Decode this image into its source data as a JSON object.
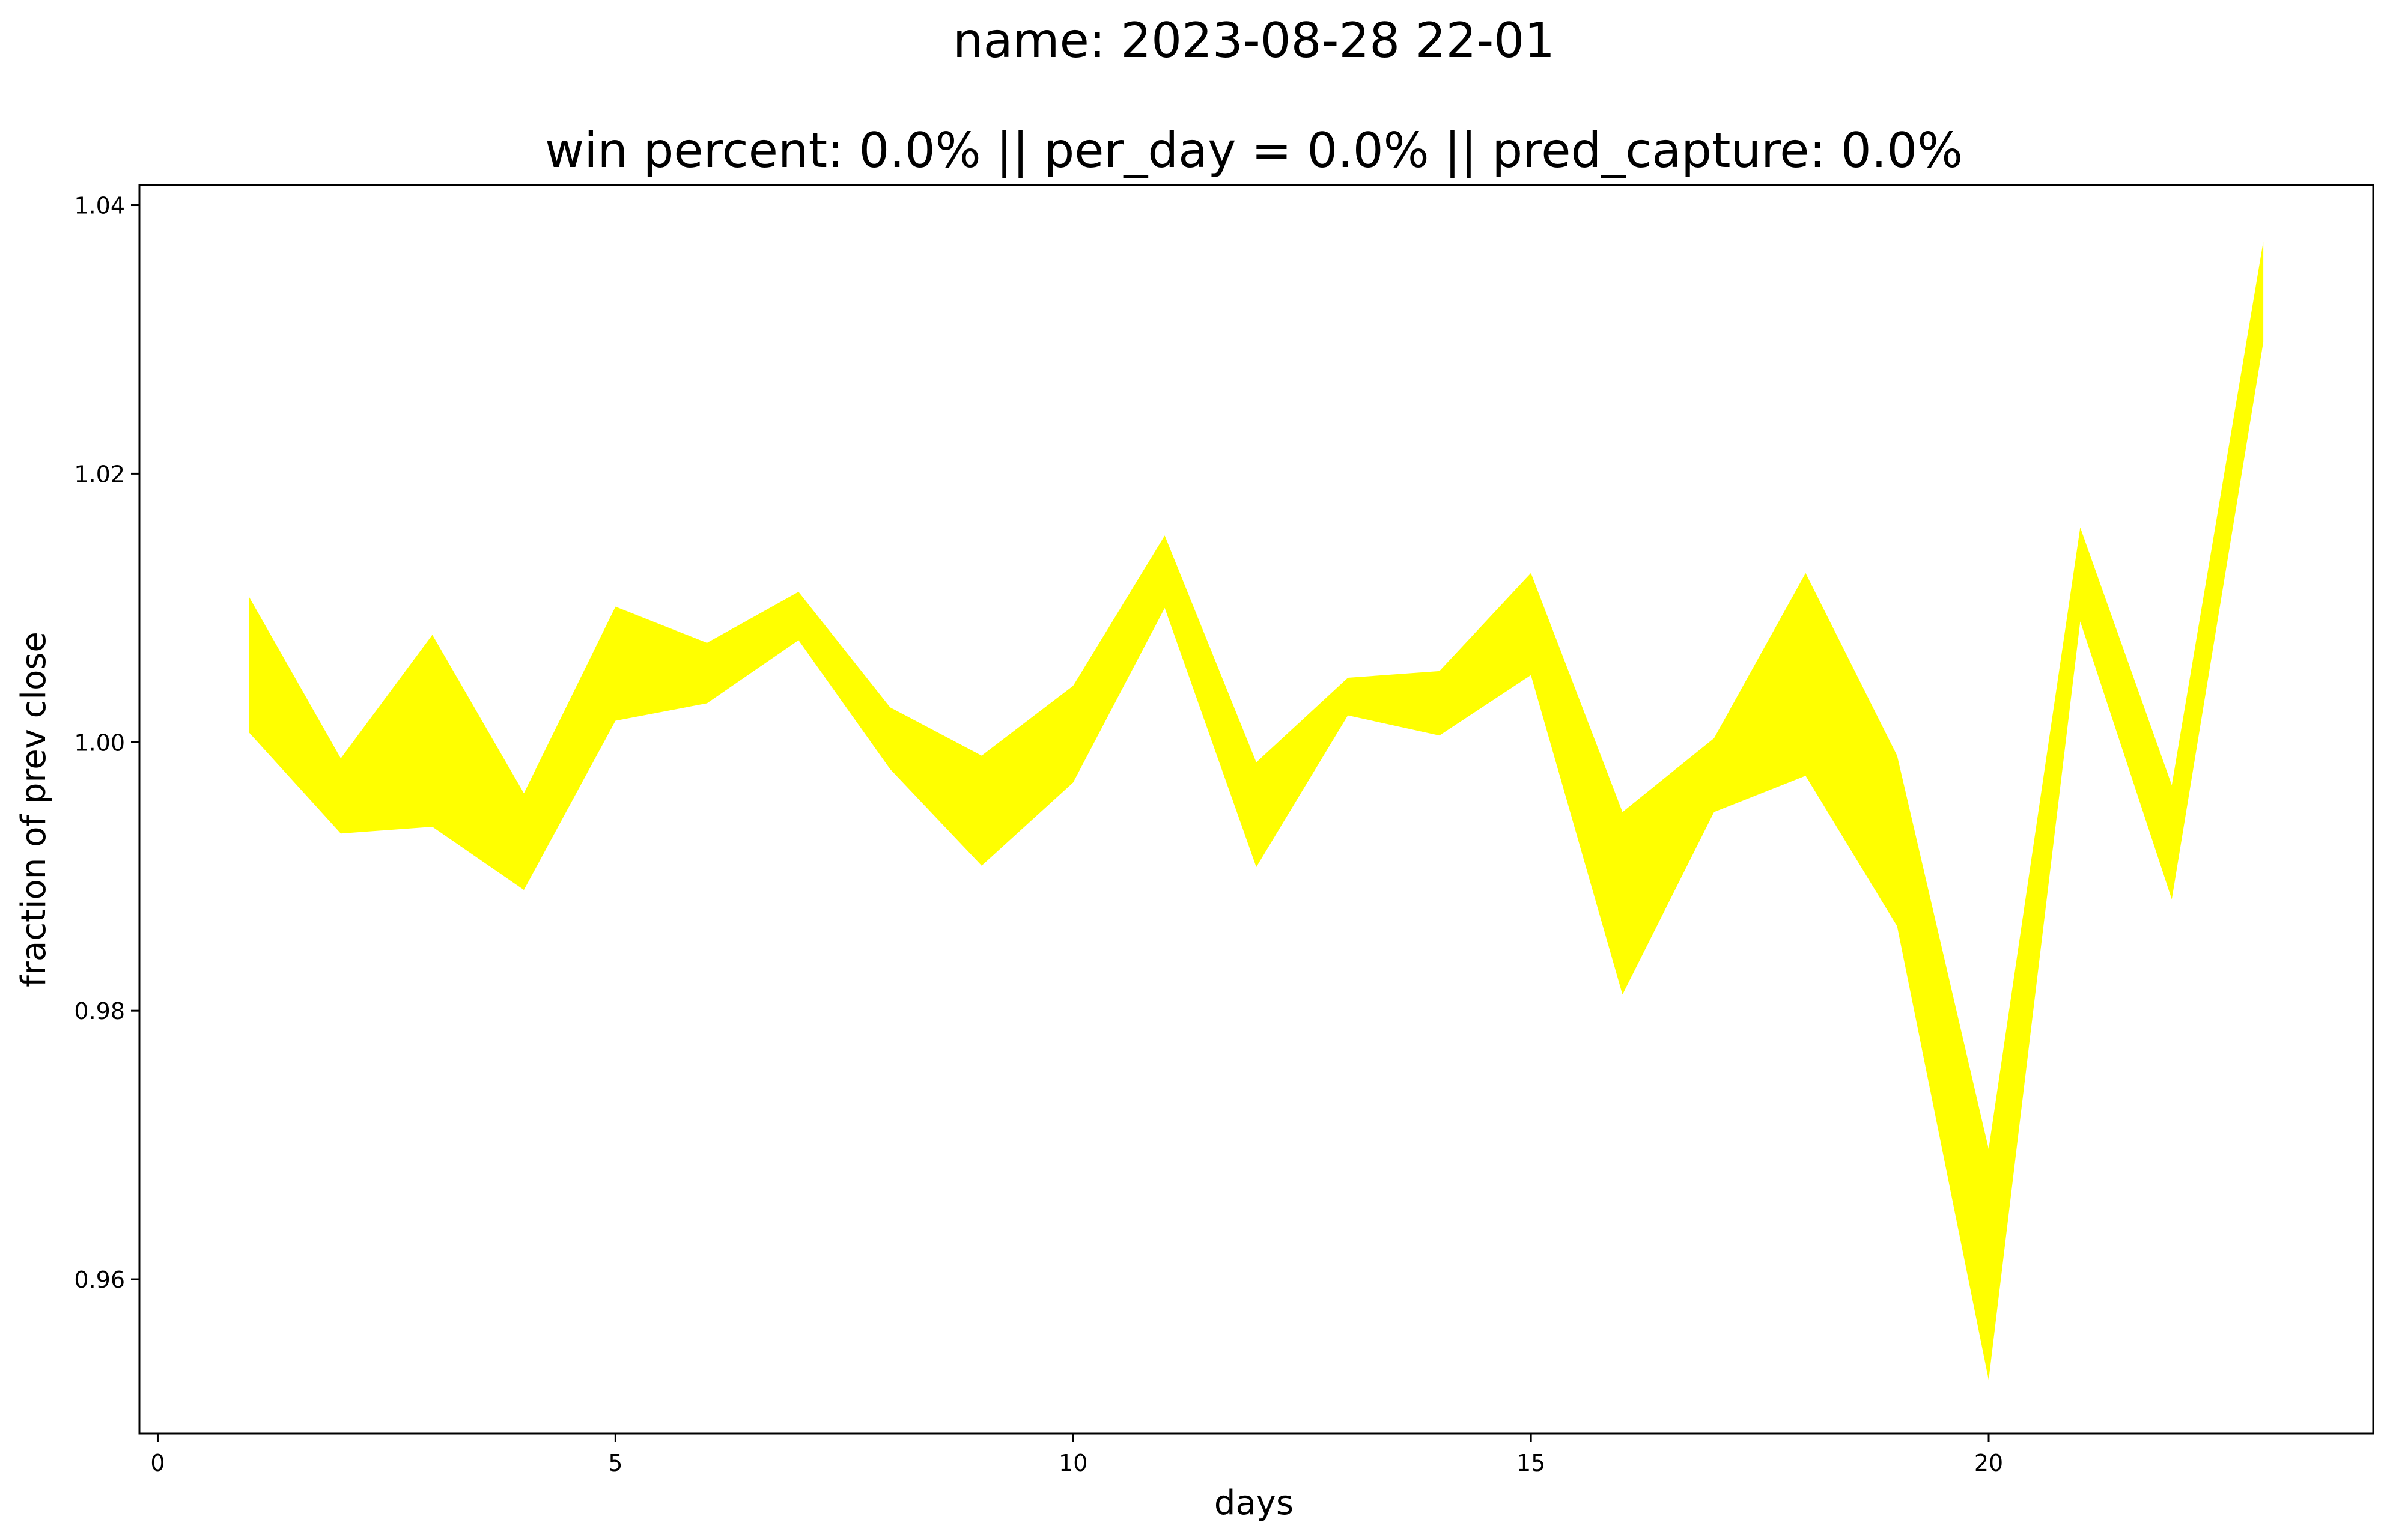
{
  "chart_data": {
    "type": "area",
    "title": "name: 2023-08-28 22-01",
    "subtitle": "win percent: 0.0%  || per_day = 0.0% || pred_capture: 0.0%",
    "xlabel": "days",
    "ylabel": "fraction of prev close",
    "xlim": [
      -0.2,
      24.2
    ],
    "ylim": [
      0.9485,
      1.0415
    ],
    "x_ticks": [
      0,
      5,
      10,
      15,
      20
    ],
    "y_ticks": [
      0.96,
      0.98,
      1.0,
      1.02,
      1.04
    ],
    "x_tick_labels": [
      "0",
      "5",
      "10",
      "15",
      "20"
    ],
    "y_tick_labels": [
      "0.96",
      "0.98",
      "1.00",
      "1.02",
      "1.04"
    ],
    "grid": false,
    "fill_color": "#ffff00",
    "x": [
      1,
      2,
      3,
      4,
      5,
      6,
      7,
      8,
      9,
      10,
      11,
      12,
      13,
      14,
      15,
      16,
      17,
      18,
      19,
      20,
      21,
      22,
      23
    ],
    "upper": [
      1.0108,
      0.9988,
      1.008,
      0.9962,
      1.0101,
      1.0074,
      1.0112,
      1.0026,
      0.999,
      1.0042,
      1.0154,
      0.9985,
      1.0048,
      1.0053,
      1.0126,
      0.9948,
      1.0003,
      1.0126,
      0.999,
      0.9697,
      1.016,
      0.9968,
      1.0373
    ],
    "lower": [
      1.0007,
      0.9932,
      0.9937,
      0.989,
      1.0016,
      1.0029,
      1.0076,
      0.998,
      0.9908,
      0.997,
      1.01,
      0.9907,
      1.002,
      1.0005,
      1.005,
      0.9812,
      0.9948,
      0.9975,
      0.9863,
      0.9525,
      1.009,
      0.9883,
      1.0298
    ]
  }
}
